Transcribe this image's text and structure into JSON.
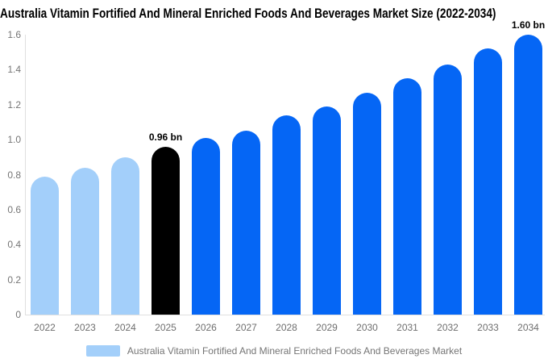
{
  "title": "Australia Vitamin Fortified And Mineral Enriched Foods And Beverages Market Size (2022-2034)",
  "legend": {
    "label": "Australia Vitamin Fortified And Mineral Enriched Foods And Beverages Market",
    "swatch_color": "#A3CFFA"
  },
  "chart_data": {
    "type": "bar",
    "title": "Australia Vitamin Fortified And Mineral Enriched Foods And Beverages Market Size (2022-2034)",
    "xlabel": "",
    "ylabel": "",
    "unit": "bn",
    "categories": [
      "2022",
      "2023",
      "2024",
      "2025",
      "2026",
      "2027",
      "2028",
      "2029",
      "2030",
      "2031",
      "2032",
      "2033",
      "2034"
    ],
    "values": [
      0.79,
      0.84,
      0.9,
      0.96,
      1.01,
      1.05,
      1.14,
      1.19,
      1.27,
      1.35,
      1.43,
      1.52,
      1.6
    ],
    "series": [
      {
        "name": "Australia Vitamin Fortified And Mineral Enriched Foods And Beverages Market",
        "values": [
          0.79,
          0.84,
          0.9,
          0.96,
          1.01,
          1.05,
          1.14,
          1.19,
          1.27,
          1.35,
          1.43,
          1.52,
          1.6
        ]
      }
    ],
    "bar_colors": [
      "#A3CFFA",
      "#A3CFFA",
      "#A3CFFA",
      "#000000",
      "#0566F5",
      "#0566F5",
      "#0566F5",
      "#0566F5",
      "#0566F5",
      "#0566F5",
      "#0566F5",
      "#0566F5",
      "#0566F5"
    ],
    "data_labels": [
      {
        "category": "2025",
        "text": "0.96 bn"
      },
      {
        "category": "2034",
        "text": "1.60 bn"
      }
    ],
    "ylim": [
      0,
      1.6
    ],
    "yticks": [
      "0",
      "0.2",
      "0.4",
      "0.6",
      "0.8",
      "1.0",
      "1.2",
      "1.4",
      "1.6"
    ],
    "grid": false,
    "legend_position": "bottom",
    "colors": {
      "axis_line": "#E0E0E0",
      "tick_text": "#757575",
      "annotation_text": "#000000",
      "past_bar": "#A3CFFA",
      "highlight_bar": "#000000",
      "forecast_bar": "#0566F5"
    }
  }
}
